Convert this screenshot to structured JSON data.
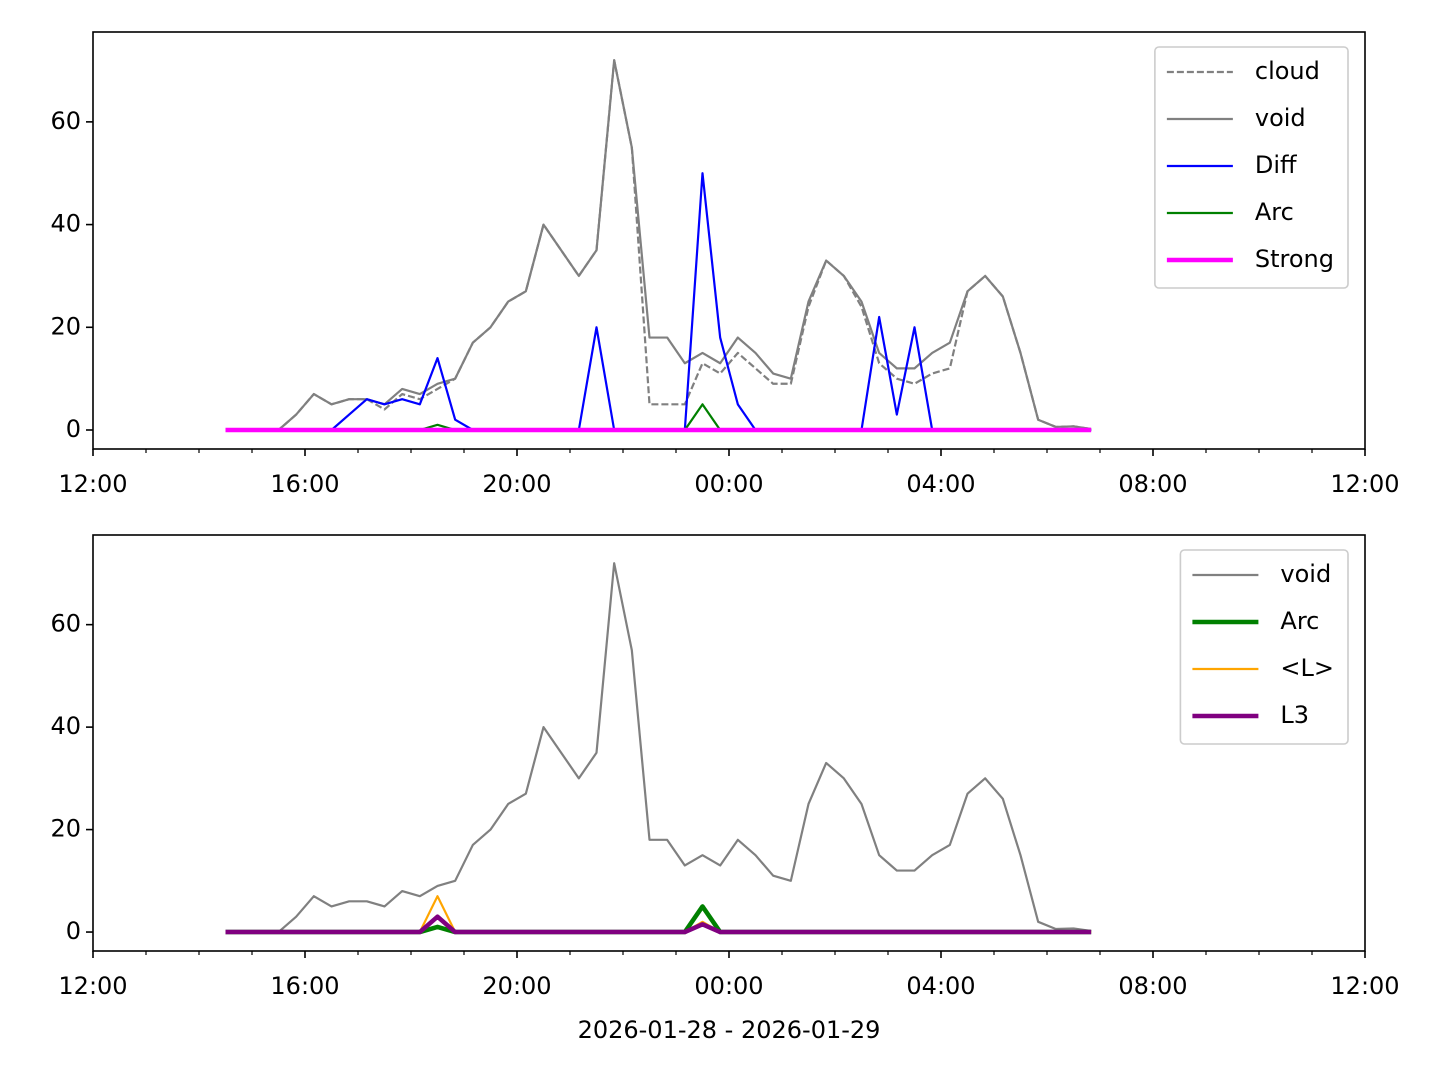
{
  "chart_data": [
    {
      "type": "line",
      "x": [
        "2026-01-28T14:30",
        "2026-01-28T14:50",
        "2026-01-28T15:10",
        "2026-01-28T15:30",
        "2026-01-28T15:50",
        "2026-01-28T16:10",
        "2026-01-28T16:30",
        "2026-01-28T16:50",
        "2026-01-28T17:10",
        "2026-01-28T17:30",
        "2026-01-28T17:50",
        "2026-01-28T18:10",
        "2026-01-28T18:30",
        "2026-01-28T18:50",
        "2026-01-28T19:10",
        "2026-01-28T19:30",
        "2026-01-28T19:50",
        "2026-01-28T20:10",
        "2026-01-28T20:30",
        "2026-01-28T20:50",
        "2026-01-28T21:10",
        "2026-01-28T21:30",
        "2026-01-28T21:50",
        "2026-01-28T22:10",
        "2026-01-28T22:30",
        "2026-01-28T22:50",
        "2026-01-28T23:10",
        "2026-01-28T23:30",
        "2026-01-28T23:50",
        "2026-01-29T00:10",
        "2026-01-29T00:30",
        "2026-01-29T00:50",
        "2026-01-29T01:10",
        "2026-01-29T01:30",
        "2026-01-29T01:50",
        "2026-01-29T02:10",
        "2026-01-29T02:30",
        "2026-01-29T02:50",
        "2026-01-29T03:10",
        "2026-01-29T03:30",
        "2026-01-29T03:50",
        "2026-01-29T04:10",
        "2026-01-29T04:30",
        "2026-01-29T04:50",
        "2026-01-29T05:10",
        "2026-01-29T05:30",
        "2026-01-29T05:50",
        "2026-01-29T06:10",
        "2026-01-29T06:30",
        "2026-01-29T06:50"
      ],
      "series": [
        {
          "name": "cloud",
          "color": "#808080",
          "linestyle": "dashed",
          "linewidth": 2.2,
          "values": [
            0,
            0,
            0,
            0,
            3,
            7,
            5,
            6,
            6,
            4,
            7,
            6,
            8,
            10,
            17,
            20,
            25,
            27,
            40,
            35,
            30,
            35,
            72,
            55,
            5,
            5,
            5,
            13,
            11,
            15,
            12,
            9,
            9,
            24,
            33,
            30,
            24,
            13,
            10,
            9,
            11,
            12,
            27,
            30,
            26,
            15,
            2,
            0.6,
            0.7,
            0.2
          ]
        },
        {
          "name": "void",
          "color": "#808080",
          "linestyle": "solid",
          "linewidth": 2.2,
          "values": [
            0,
            0,
            0,
            0,
            3,
            7,
            5,
            6,
            6,
            5,
            8,
            7,
            9,
            10,
            17,
            20,
            25,
            27,
            40,
            35,
            30,
            35,
            72,
            55,
            18,
            18,
            13,
            15,
            13,
            18,
            15,
            11,
            10,
            25,
            33,
            30,
            25,
            15,
            12,
            12,
            15,
            17,
            27,
            30,
            26,
            15,
            2,
            0.6,
            0.7,
            0.2
          ]
        },
        {
          "name": "Diff",
          "color": "#0000ff",
          "linestyle": "solid",
          "linewidth": 2.2,
          "values": [
            0,
            0,
            0,
            0,
            0,
            0,
            0,
            3,
            6,
            5,
            6,
            5,
            14,
            2,
            0,
            0,
            0,
            0,
            0,
            0,
            0,
            20,
            0,
            0,
            0,
            0,
            0,
            50,
            18,
            5,
            0,
            0,
            0,
            0,
            0,
            0,
            0,
            22,
            3,
            20,
            0,
            0,
            0,
            0,
            0,
            0,
            0,
            0,
            0,
            0
          ]
        },
        {
          "name": "Arc",
          "color": "#008000",
          "linestyle": "solid",
          "linewidth": 2.2,
          "values": [
            0,
            0,
            0,
            0,
            0,
            0,
            0,
            0,
            0,
            0,
            0,
            0,
            1,
            0,
            0,
            0,
            0,
            0,
            0,
            0,
            0,
            0,
            0,
            0,
            0,
            0,
            0,
            5,
            0,
            0,
            0,
            0,
            0,
            0,
            0,
            0,
            0,
            0,
            0,
            0,
            0,
            0,
            0,
            0,
            0,
            0,
            0,
            0,
            0,
            0
          ]
        },
        {
          "name": "Strong",
          "color": "#ff00ff",
          "linestyle": "solid",
          "linewidth": 4.5,
          "values": [
            0,
            0,
            0,
            0,
            0,
            0,
            0,
            0,
            0,
            0,
            0,
            0,
            0,
            0,
            0,
            0,
            0,
            0,
            0,
            0,
            0,
            0,
            0,
            0,
            0,
            0,
            0,
            0,
            0,
            0,
            0,
            0,
            0,
            0,
            0,
            0,
            0,
            0,
            0,
            0,
            0,
            0,
            0,
            0,
            0,
            0,
            0,
            0,
            0,
            0
          ]
        }
      ],
      "xlim": [
        "2026-01-28T12:00",
        "2026-01-29T12:00"
      ],
      "xticks": [
        {
          "value": "2026-01-28T12:00",
          "label": "12:00"
        },
        {
          "value": "2026-01-28T16:00",
          "label": "16:00"
        },
        {
          "value": "2026-01-28T20:00",
          "label": "20:00"
        },
        {
          "value": "2026-01-29T00:00",
          "label": "00:00"
        },
        {
          "value": "2026-01-29T04:00",
          "label": "04:00"
        },
        {
          "value": "2026-01-29T08:00",
          "label": "08:00"
        },
        {
          "value": "2026-01-29T12:00",
          "label": "12:00"
        }
      ],
      "ylim": [
        -3.7,
        77.5
      ],
      "yticks": [
        0,
        20,
        40,
        60
      ],
      "legend": "upper right"
    },
    {
      "type": "line",
      "x": [
        "2026-01-28T14:30",
        "2026-01-28T14:50",
        "2026-01-28T15:10",
        "2026-01-28T15:30",
        "2026-01-28T15:50",
        "2026-01-28T16:10",
        "2026-01-28T16:30",
        "2026-01-28T16:50",
        "2026-01-28T17:10",
        "2026-01-28T17:30",
        "2026-01-28T17:50",
        "2026-01-28T18:10",
        "2026-01-28T18:30",
        "2026-01-28T18:50",
        "2026-01-28T19:10",
        "2026-01-28T19:30",
        "2026-01-28T19:50",
        "2026-01-28T20:10",
        "2026-01-28T20:30",
        "2026-01-28T20:50",
        "2026-01-28T21:10",
        "2026-01-28T21:30",
        "2026-01-28T21:50",
        "2026-01-28T22:10",
        "2026-01-28T22:30",
        "2026-01-28T22:50",
        "2026-01-28T23:10",
        "2026-01-28T23:30",
        "2026-01-28T23:50",
        "2026-01-29T00:10",
        "2026-01-29T00:30",
        "2026-01-29T00:50",
        "2026-01-29T01:10",
        "2026-01-29T01:30",
        "2026-01-29T01:50",
        "2026-01-29T02:10",
        "2026-01-29T02:30",
        "2026-01-29T02:50",
        "2026-01-29T03:10",
        "2026-01-29T03:30",
        "2026-01-29T03:50",
        "2026-01-29T04:10",
        "2026-01-29T04:30",
        "2026-01-29T04:50",
        "2026-01-29T05:10",
        "2026-01-29T05:30",
        "2026-01-29T05:50",
        "2026-01-29T06:10",
        "2026-01-29T06:30",
        "2026-01-29T06:50"
      ],
      "series": [
        {
          "name": "void",
          "color": "#808080",
          "linestyle": "solid",
          "linewidth": 2.2,
          "values": [
            0,
            0,
            0,
            0,
            3,
            7,
            5,
            6,
            6,
            5,
            8,
            7,
            9,
            10,
            17,
            20,
            25,
            27,
            40,
            35,
            30,
            35,
            72,
            55,
            18,
            18,
            13,
            15,
            13,
            18,
            15,
            11,
            10,
            25,
            33,
            30,
            25,
            15,
            12,
            12,
            15,
            17,
            27,
            30,
            26,
            15,
            2,
            0.6,
            0.7,
            0.2
          ]
        },
        {
          "name": "Arc",
          "color": "#008000",
          "linestyle": "solid",
          "linewidth": 4.5,
          "values": [
            0,
            0,
            0,
            0,
            0,
            0,
            0,
            0,
            0,
            0,
            0,
            0,
            1,
            0,
            0,
            0,
            0,
            0,
            0,
            0,
            0,
            0,
            0,
            0,
            0,
            0,
            0,
            5,
            0,
            0,
            0,
            0,
            0,
            0,
            0,
            0,
            0,
            0,
            0,
            0,
            0,
            0,
            0,
            0,
            0,
            0,
            0,
            0,
            0,
            0
          ]
        },
        {
          "name": "<L>",
          "color": "#ffa500",
          "linestyle": "solid",
          "linewidth": 2.2,
          "values": [
            0,
            0,
            0,
            0,
            0,
            0,
            0,
            0,
            0,
            0,
            0,
            0,
            7,
            0,
            0,
            0,
            0,
            0,
            0,
            0,
            0,
            0,
            0,
            0,
            0,
            0,
            0,
            2,
            0,
            0,
            0,
            0,
            0,
            0,
            0,
            0,
            0,
            0,
            0,
            0,
            0,
            0,
            0,
            0,
            0,
            0,
            0,
            0,
            0,
            0
          ]
        },
        {
          "name": "L3",
          "color": "#800080",
          "linestyle": "solid",
          "linewidth": 4.5,
          "values": [
            0,
            0,
            0,
            0,
            0,
            0,
            0,
            0,
            0,
            0,
            0,
            0,
            3,
            0,
            0,
            0,
            0,
            0,
            0,
            0,
            0,
            0,
            0,
            0,
            0,
            0,
            0,
            1.5,
            0,
            0,
            0,
            0,
            0,
            0,
            0,
            0,
            0,
            0,
            0,
            0,
            0,
            0,
            0,
            0,
            0,
            0,
            0,
            0,
            0,
            0
          ]
        }
      ],
      "xlim": [
        "2026-01-28T12:00",
        "2026-01-29T12:00"
      ],
      "xticks": [
        {
          "value": "2026-01-28T12:00",
          "label": "12:00"
        },
        {
          "value": "2026-01-28T16:00",
          "label": "16:00"
        },
        {
          "value": "2026-01-28T20:00",
          "label": "20:00"
        },
        {
          "value": "2026-01-29T00:00",
          "label": "00:00"
        },
        {
          "value": "2026-01-29T04:00",
          "label": "04:00"
        },
        {
          "value": "2026-01-29T08:00",
          "label": "08:00"
        },
        {
          "value": "2026-01-29T12:00",
          "label": "12:00"
        }
      ],
      "xlabel": "2026-01-28 - 2026-01-29",
      "ylim": [
        -3.7,
        77.5
      ],
      "yticks": [
        0,
        20,
        40,
        60
      ],
      "legend": "upper right"
    }
  ]
}
